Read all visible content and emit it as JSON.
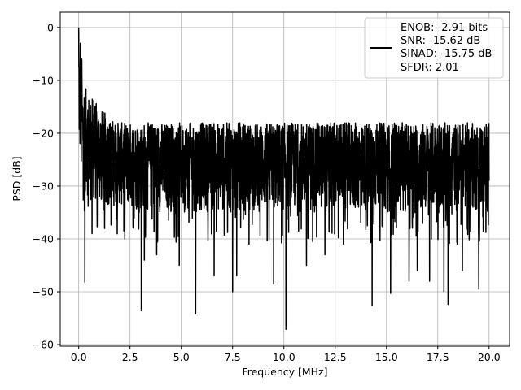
{
  "chart_data": {
    "type": "line",
    "title": "",
    "xlabel": "Frequency [MHz]",
    "ylabel": "PSD [dB]",
    "xlim": [
      -0.9,
      21.0
    ],
    "ylim": [
      -60.3,
      2.9
    ],
    "xticks": [
      0.0,
      2.5,
      5.0,
      7.5,
      10.0,
      12.5,
      15.0,
      17.5,
      20.0
    ],
    "xtick_labels": [
      "0.0",
      "2.5",
      "5.0",
      "7.5",
      "10.0",
      "12.5",
      "15.0",
      "17.5",
      "20.0"
    ],
    "yticks": [
      0,
      -10,
      -20,
      -30,
      -40,
      -50,
      -60
    ],
    "ytick_labels": [
      "0",
      "−10",
      "−20",
      "−30",
      "−40",
      "−50",
      "−60"
    ],
    "grid": true,
    "legend_position": "top-right",
    "series": [
      {
        "name": "",
        "color": "#000000",
        "envelope": {
          "x": [
            0.0,
            0.05,
            0.1,
            0.2,
            0.4,
            0.6,
            1.0,
            1.5,
            2.0,
            3.0,
            5.0,
            7.5,
            10.0,
            12.5,
            15.0,
            17.5,
            20.0
          ],
          "upper": [
            0.0,
            -5,
            -8,
            -10,
            -12,
            -13,
            -15,
            -17,
            -18,
            -18,
            -18,
            -18,
            -18,
            -18,
            -18,
            -18,
            -18
          ],
          "lower": [
            -22,
            -28,
            -30,
            -31,
            -32,
            -33,
            -34,
            -34,
            -34,
            -35,
            -35,
            -35,
            -35,
            -35,
            -35,
            -35,
            -35
          ]
        },
        "dips": [
          {
            "x": 0.3,
            "y": -48.2
          },
          {
            "x": 0.65,
            "y": -39.0
          },
          {
            "x": 2.2,
            "y": -38.5
          },
          {
            "x": 3.05,
            "y": -53.6
          },
          {
            "x": 3.2,
            "y": -44.0
          },
          {
            "x": 3.8,
            "y": -43.0
          },
          {
            "x": 4.9,
            "y": -45.0
          },
          {
            "x": 5.7,
            "y": -54.2
          },
          {
            "x": 6.6,
            "y": -47.0
          },
          {
            "x": 7.5,
            "y": -50.0
          },
          {
            "x": 7.7,
            "y": -47.0
          },
          {
            "x": 8.3,
            "y": -41.0
          },
          {
            "x": 9.5,
            "y": -48.5
          },
          {
            "x": 10.1,
            "y": -57.1
          },
          {
            "x": 11.1,
            "y": -45.0
          },
          {
            "x": 12.0,
            "y": -43.0
          },
          {
            "x": 12.9,
            "y": -41.0
          },
          {
            "x": 14.3,
            "y": -52.6
          },
          {
            "x": 15.2,
            "y": -50.3
          },
          {
            "x": 16.1,
            "y": -48.0
          },
          {
            "x": 16.5,
            "y": -46.0
          },
          {
            "x": 17.1,
            "y": -48.0
          },
          {
            "x": 17.8,
            "y": -50.0
          },
          {
            "x": 18.0,
            "y": -52.4
          },
          {
            "x": 18.7,
            "y": -46.0
          },
          {
            "x": 19.5,
            "y": -49.5
          }
        ],
        "peaks": [
          {
            "x": 0.0,
            "y": 0.0
          },
          {
            "x": 0.08,
            "y": -3.0
          },
          {
            "x": 0.15,
            "y": -6.0
          },
          {
            "x": 0.3,
            "y": -8.5
          }
        ]
      }
    ],
    "legend": {
      "lines": [
        "ENOB: -2.91 bits",
        "SNR: -15.62 dB",
        "SINAD: -15.75 dB",
        "SFDR: 2.01"
      ]
    }
  }
}
